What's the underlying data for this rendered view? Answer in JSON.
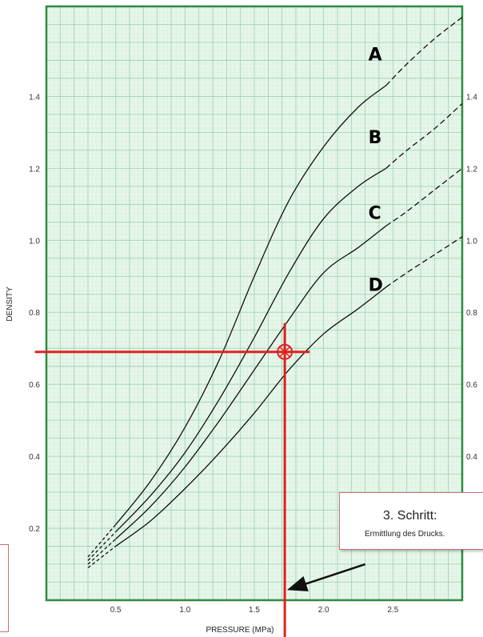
{
  "chart_data": {
    "type": "line",
    "xlabel": "PRESSURE (MPa)",
    "ylabel": "DENSITY",
    "xlim": [
      0.0,
      3.0
    ],
    "ylim": [
      0.0,
      1.65
    ],
    "x_ticks": [
      "0.5",
      "1.0",
      "1.5",
      "2.0",
      "2.5"
    ],
    "x_tick_values": [
      0.5,
      1.0,
      1.5,
      2.0,
      2.5
    ],
    "y_ticks_left": [
      "0.2",
      "0.4",
      "0.6",
      "0.8",
      "1.0",
      "1.2",
      "1.4"
    ],
    "y_ticks_right": [
      "0.4",
      "0.6",
      "0.8",
      "1.0",
      "1.2",
      "1.4"
    ],
    "y_tick_values_left": [
      0.2,
      0.4,
      0.6,
      0.8,
      1.0,
      1.2,
      1.4
    ],
    "y_tick_values_right": [
      0.4,
      0.6,
      0.8,
      1.0,
      1.2,
      1.4
    ],
    "grid": true,
    "background_color": "#e6f6ea",
    "grid_color": "#9fd0ae",
    "frame_color": "#2f8a3e",
    "series": [
      {
        "name": "A",
        "solid": [
          [
            0.3,
            0.12
          ],
          [
            0.5,
            0.21
          ],
          [
            0.75,
            0.33
          ],
          [
            1.0,
            0.48
          ],
          [
            1.25,
            0.67
          ],
          [
            1.5,
            0.9
          ],
          [
            1.75,
            1.11
          ],
          [
            2.0,
            1.26
          ],
          [
            2.25,
            1.37
          ],
          [
            2.45,
            1.43
          ]
        ],
        "dashed": [
          [
            2.45,
            1.43
          ],
          [
            2.6,
            1.49
          ],
          [
            2.8,
            1.56
          ],
          [
            3.0,
            1.62
          ]
        ]
      },
      {
        "name": "B",
        "solid": [
          [
            0.3,
            0.11
          ],
          [
            0.5,
            0.19
          ],
          [
            0.75,
            0.29
          ],
          [
            1.0,
            0.41
          ],
          [
            1.25,
            0.56
          ],
          [
            1.5,
            0.73
          ],
          [
            1.75,
            0.91
          ],
          [
            2.0,
            1.06
          ],
          [
            2.25,
            1.15
          ],
          [
            2.45,
            1.2
          ]
        ],
        "dashed": [
          [
            2.45,
            1.2
          ],
          [
            2.6,
            1.25
          ],
          [
            2.8,
            1.31
          ],
          [
            3.0,
            1.38
          ]
        ]
      },
      {
        "name": "C",
        "solid": [
          [
            0.3,
            0.1
          ],
          [
            0.5,
            0.17
          ],
          [
            0.75,
            0.26
          ],
          [
            1.0,
            0.37
          ],
          [
            1.25,
            0.5
          ],
          [
            1.5,
            0.64
          ],
          [
            1.75,
            0.78
          ],
          [
            2.0,
            0.91
          ],
          [
            2.25,
            0.98
          ],
          [
            2.45,
            1.04
          ]
        ],
        "dashed": [
          [
            2.45,
            1.04
          ],
          [
            2.6,
            1.08
          ],
          [
            2.8,
            1.14
          ],
          [
            3.0,
            1.2
          ]
        ]
      },
      {
        "name": "D",
        "solid": [
          [
            0.3,
            0.09
          ],
          [
            0.5,
            0.15
          ],
          [
            0.75,
            0.22
          ],
          [
            1.0,
            0.31
          ],
          [
            1.25,
            0.41
          ],
          [
            1.5,
            0.52
          ],
          [
            1.75,
            0.64
          ],
          [
            2.0,
            0.74
          ],
          [
            2.25,
            0.81
          ],
          [
            2.45,
            0.87
          ]
        ],
        "dashed": [
          [
            2.45,
            0.87
          ],
          [
            2.6,
            0.91
          ],
          [
            2.8,
            0.96
          ],
          [
            3.0,
            1.01
          ]
        ]
      }
    ],
    "series_label_points": [
      [
        2.45,
        1.5
      ],
      [
        2.45,
        1.27
      ],
      [
        2.45,
        1.06
      ],
      [
        2.45,
        0.86
      ]
    ],
    "annotation": {
      "pressure": 1.72,
      "density": 0.69,
      "line_color": "#e02020",
      "horizontal_line_x_range": [
        -0.1,
        1.9
      ],
      "vertical_line_y_range": [
        -0.05,
        0.77
      ],
      "arrow_from": [
        2.3,
        0.1
      ],
      "arrow_to": [
        1.75,
        0.03
      ]
    }
  },
  "callout": {
    "title": "3. Schritt:",
    "text": "Ermittlung des Drucks."
  }
}
